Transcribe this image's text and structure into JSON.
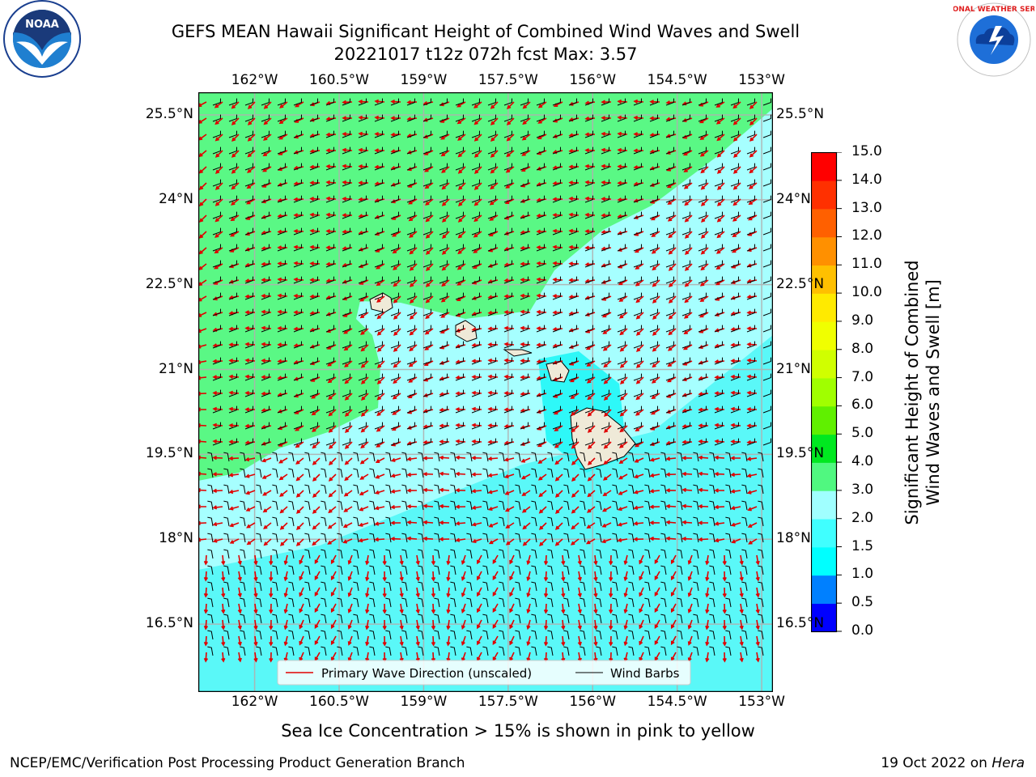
{
  "title_line1": "GEFS MEAN Hawaii Significant Height of Combined Wind Waves and Swell",
  "title_line2": "20221017 t12z 072h fcst   Max: 3.57",
  "lon_ticks": [
    "162°W",
    "160.5°W",
    "159°W",
    "157.5°W",
    "156°W",
    "154.5°W",
    "153°W"
  ],
  "lat_ticks": [
    "25.5°N",
    "24°N",
    "22.5°N",
    "21°N",
    "19.5°N",
    "18°N",
    "16.5°N"
  ],
  "map_extent": {
    "lon_min": -163.0,
    "lon_max": -152.8,
    "lat_min": 15.3,
    "lat_max": 25.9
  },
  "colorbar": {
    "label_line1": "Significant Height of Combined",
    "label_line2": "Wind Waves and Swell [m]",
    "ticks": [
      "0.0",
      "0.5",
      "1.0",
      "1.5",
      "2.0",
      "3.0",
      "4.0",
      "5.0",
      "6.0",
      "7.0",
      "8.0",
      "9.0",
      "10.0",
      "11.0",
      "12.0",
      "13.0",
      "14.0",
      "15.0"
    ],
    "colors": [
      "#0000ff",
      "#0080ff",
      "#00ffff",
      "#40ffff",
      "#a0ffff",
      "#50f880",
      "#00e820",
      "#60f000",
      "#a0ff00",
      "#d0ff00",
      "#f0ff00",
      "#ffea00",
      "#ffc000",
      "#ff9000",
      "#ff6000",
      "#ff3000",
      "#ff0000"
    ]
  },
  "legend": {
    "wave_direction": "Primary Wave Direction (unscaled)",
    "wind_barbs": "Wind Barbs",
    "wave_color": "#ff0000",
    "barb_color": "#000000"
  },
  "field_colors": {
    "green": "#5af885",
    "light_cyan": "#a6ffff",
    "cyan": "#5af8f8",
    "bright_cyan": "#2ef8f8",
    "land": "#efead8"
  },
  "sea_ice_note": "Sea Ice Concentration > 15% is shown in pink to yellow",
  "footer_left": "NCEP/EMC/Verification Post Processing Product Generation Branch",
  "footer_date": "19 Oct 2022 on ",
  "footer_machine": "Hera",
  "logos": {
    "left": "NOAA",
    "right": "NATIONAL WEATHER SERVICE"
  }
}
